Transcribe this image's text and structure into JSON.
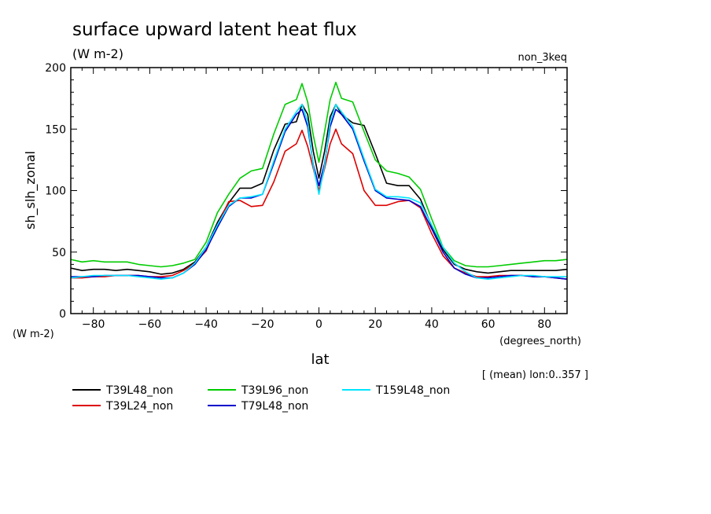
{
  "chart_data": {
    "type": "line",
    "title": "surface upward latent heat flux",
    "subtitle": "(W m-2)",
    "experiment_label": "non_3keq",
    "ylabel": "sh_slh_zonal",
    "yunit_label": "(W m-2)",
    "xlabel": "lat",
    "xunit_label": "(degrees_north)",
    "note": "[ (mean) lon:0..357 ]",
    "xlim": [
      -88,
      88
    ],
    "ylim": [
      0,
      200
    ],
    "xticks": [
      -80,
      -60,
      -40,
      -20,
      0,
      20,
      40,
      60,
      80
    ],
    "yticks": [
      0,
      50,
      100,
      150,
      200
    ],
    "x": [
      -88,
      -84,
      -80,
      -76,
      -72,
      -68,
      -64,
      -60,
      -56,
      -52,
      -48,
      -44,
      -40,
      -36,
      -32,
      -28,
      -24,
      -20,
      -16,
      -12,
      -8,
      -6,
      -4,
      -2,
      0,
      2,
      4,
      6,
      8,
      12,
      16,
      20,
      24,
      28,
      32,
      36,
      40,
      44,
      48,
      52,
      56,
      60,
      64,
      68,
      72,
      76,
      80,
      84,
      88
    ],
    "series": [
      {
        "name": "T39L48_non",
        "color": "#000000",
        "values": [
          37,
          35,
          36,
          36,
          35,
          36,
          35,
          34,
          32,
          33,
          36,
          42,
          54,
          74,
          90,
          102,
          102,
          106,
          133,
          154,
          156,
          170,
          162,
          132,
          110,
          132,
          160,
          170,
          162,
          155,
          153,
          130,
          106,
          104,
          104,
          93,
          71,
          52,
          40,
          36,
          34,
          33,
          34,
          35,
          35,
          35,
          35,
          35,
          36
        ]
      },
      {
        "name": "T39L24_non",
        "color": "#dd0000",
        "values": [
          29,
          29,
          30,
          30,
          31,
          31,
          31,
          30,
          30,
          31,
          35,
          41,
          51,
          72,
          91,
          92,
          87,
          88,
          107,
          132,
          138,
          149,
          136,
          118,
          100,
          118,
          138,
          150,
          138,
          130,
          100,
          88,
          88,
          91,
          92,
          86,
          65,
          47,
          37,
          33,
          30,
          30,
          31,
          31,
          31,
          30,
          30,
          29,
          28
        ]
      },
      {
        "name": "T39L96_non",
        "color": "#00cc00",
        "values": [
          44,
          42,
          43,
          42,
          42,
          42,
          40,
          39,
          38,
          39,
          41,
          44,
          58,
          82,
          97,
          110,
          116,
          118,
          146,
          170,
          174,
          187,
          172,
          145,
          123,
          148,
          174,
          188,
          175,
          172,
          148,
          125,
          116,
          114,
          111,
          101,
          77,
          54,
          43,
          39,
          38,
          38,
          39,
          40,
          41,
          42,
          43,
          43,
          44
        ]
      },
      {
        "name": "T79L48_non",
        "color": "#0000cc",
        "values": [
          30,
          30,
          30,
          31,
          31,
          31,
          31,
          30,
          29,
          29,
          33,
          40,
          52,
          70,
          87,
          94,
          94,
          97,
          122,
          148,
          162,
          166,
          152,
          121,
          104,
          122,
          152,
          166,
          162,
          150,
          124,
          100,
          94,
          93,
          92,
          87,
          69,
          50,
          37,
          32,
          29,
          29,
          30,
          31,
          31,
          30,
          30,
          29,
          28
        ]
      },
      {
        "name": "T159L48_non",
        "color": "#00e5ff",
        "values": [
          29,
          30,
          31,
          31,
          31,
          31,
          30,
          29,
          28,
          29,
          33,
          41,
          54,
          72,
          88,
          94,
          95,
          97,
          124,
          150,
          164,
          170,
          156,
          120,
          97,
          120,
          156,
          170,
          164,
          152,
          126,
          101,
          95,
          95,
          94,
          90,
          72,
          54,
          41,
          34,
          29,
          28,
          29,
          30,
          31,
          31,
          30,
          30,
          30
        ]
      }
    ],
    "grid": false,
    "legend_position": "bottom-left"
  }
}
